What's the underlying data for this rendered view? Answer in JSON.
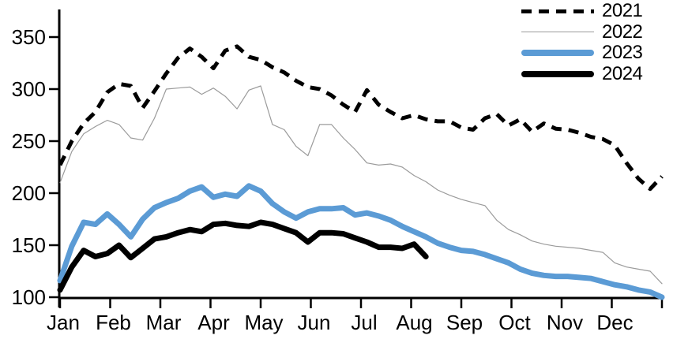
{
  "chart_data": {
    "type": "line",
    "title": "",
    "x_axis": {
      "tick_labels": [
        "Jan",
        "Feb",
        "Mar",
        "Apr",
        "May",
        "Jun",
        "Jul",
        "Aug",
        "Sep",
        "Oct",
        "Nov",
        "Dec"
      ],
      "note": "13 ticks at month starts, weekly data points"
    },
    "y_axis": {
      "ticks": [
        100,
        150,
        200,
        250,
        300,
        350
      ],
      "range": [
        100,
        365
      ],
      "grid": false
    },
    "legend": {
      "position": "top-right",
      "entries": [
        "2021",
        "2022",
        "2023",
        "2024"
      ]
    },
    "series": [
      {
        "name": "2022",
        "color": "#9b9b9b",
        "style": "solid",
        "width": 1.2,
        "values": [
          210,
          240,
          257,
          264,
          270,
          266,
          253,
          251,
          272,
          300,
          301,
          302,
          295,
          301,
          293,
          281,
          299,
          303,
          266,
          261,
          245,
          236,
          266,
          266,
          253,
          242,
          229,
          227,
          228,
          225,
          217,
          211,
          203,
          198,
          194,
          191,
          188,
          174,
          165,
          160,
          154,
          151,
          149,
          148,
          147,
          145,
          143,
          133,
          129,
          127,
          125,
          113
        ]
      },
      {
        "name": "2021",
        "color": "#000000",
        "style": "dashed",
        "width": 5,
        "values": [
          227,
          250,
          267,
          278,
          297,
          305,
          303,
          282,
          298,
          315,
          330,
          339,
          331,
          320,
          337,
          341,
          331,
          328,
          321,
          316,
          308,
          302,
          300,
          294,
          285,
          278,
          299,
          285,
          278,
          272,
          275,
          271,
          269,
          269,
          263,
          261,
          272,
          276,
          265,
          271,
          259,
          267,
          262,
          261,
          258,
          254,
          252,
          246,
          229,
          214,
          204,
          216
        ]
      },
      {
        "name": "2023",
        "color": "#5B9BD5",
        "style": "solid",
        "width": 7,
        "values": [
          116,
          149,
          172,
          170,
          180,
          170,
          158,
          175,
          186,
          191,
          195,
          202,
          206,
          196,
          199,
          197,
          207,
          202,
          190,
          182,
          176,
          182,
          185,
          185,
          186,
          179,
          181,
          178,
          174,
          168,
          163,
          158,
          152,
          148,
          145,
          144,
          141,
          137,
          133,
          127,
          123,
          121,
          120,
          120,
          119,
          118,
          115,
          112,
          110,
          107,
          105,
          100
        ]
      },
      {
        "name": "2024",
        "color": "#000000",
        "style": "solid",
        "width": 7,
        "values": [
          107,
          129,
          145,
          139,
          142,
          150,
          138,
          147,
          156,
          158,
          162,
          165,
          163,
          170,
          171,
          169,
          168,
          172,
          170,
          166,
          162,
          153,
          162,
          162,
          161,
          157,
          153,
          148,
          148,
          147,
          151,
          139
        ]
      }
    ],
    "legend_series_order": [
      "2021",
      "2022",
      "2023",
      "2024"
    ]
  }
}
